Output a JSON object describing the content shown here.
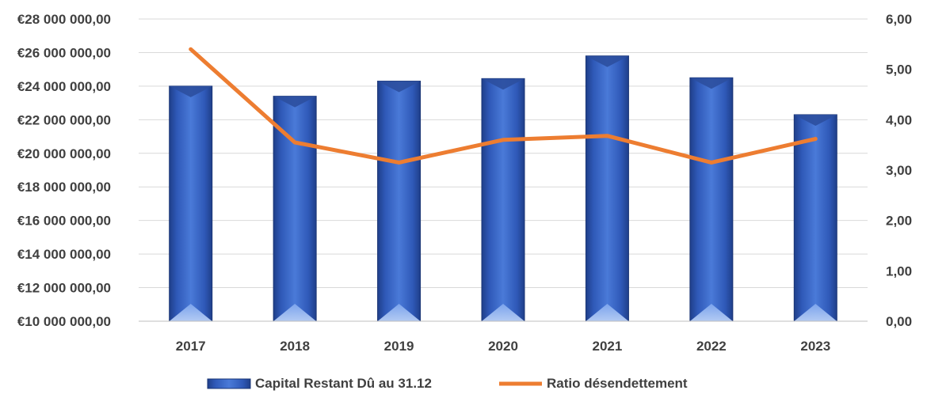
{
  "chart_data": {
    "type": "bar",
    "categories": [
      "2017",
      "2018",
      "2019",
      "2020",
      "2021",
      "2022",
      "2023"
    ],
    "series": [
      {
        "name": "Capital Restant Dû au 31.12",
        "type": "bar",
        "axis": "left",
        "color": "#4472C4",
        "values": [
          24000000,
          23400000,
          24300000,
          24450000,
          25800000,
          24500000,
          22300000
        ]
      },
      {
        "name": "Ratio désendettement",
        "type": "line",
        "axis": "right",
        "color": "#ED7D31",
        "values": [
          5.4,
          3.55,
          3.15,
          3.6,
          3.68,
          3.15,
          3.62
        ]
      }
    ],
    "y_left": {
      "ylim": [
        10000000,
        28000000
      ],
      "ticks": [
        "€10 000 000,00",
        "€12 000 000,00",
        "€14 000 000,00",
        "€16 000 000,00",
        "€18 000 000,00",
        "€20 000 000,00",
        "€22 000 000,00",
        "€24 000 000,00",
        "€26 000 000,00",
        "€28 000 000,00"
      ]
    },
    "y_right": {
      "ylim": [
        0,
        6
      ],
      "ticks": [
        "0,00",
        "1,00",
        "2,00",
        "3,00",
        "4,00",
        "5,00",
        "6,00"
      ]
    },
    "grid": true,
    "legend_position": "bottom",
    "title": "",
    "xlabel": "",
    "ylabel": ""
  }
}
